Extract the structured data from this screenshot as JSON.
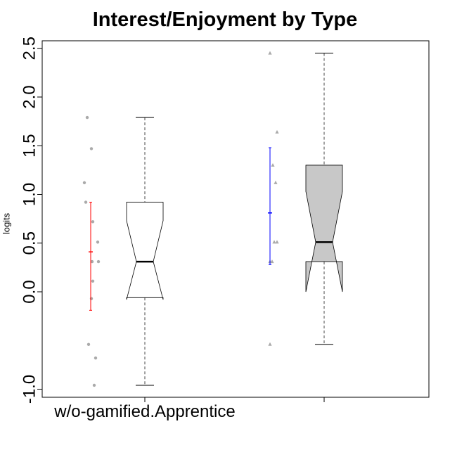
{
  "chart_data": {
    "type": "boxplot",
    "title": "Interest/Enjoyment by Type",
    "ylabel": "logits",
    "xlabel": "",
    "ylim": [
      -1.1,
      2.62
    ],
    "y_ticks": [
      {
        "value": 2.5,
        "label": "2.5"
      },
      {
        "value": 2.0,
        "label": "2.0"
      },
      {
        "value": 1.5,
        "label": "1.5"
      },
      {
        "value": 1.0,
        "label": "1.0"
      },
      {
        "value": 0.5,
        "label": "0.5"
      },
      {
        "value": 0.0,
        "label": "0.0"
      },
      {
        "value": -1.0,
        "label": "-1.0"
      }
    ],
    "groups": [
      {
        "label": "w/o-gamified.Apprentice",
        "box": {
          "whisker_low": -0.96,
          "q1": -0.06,
          "median": 0.31,
          "q3": 0.92,
          "whisker_high": 1.79,
          "notch_low": -0.08,
          "notch_high": 0.73
        },
        "box_fill": "#ffffff",
        "points": [
          {
            "x": -1.9,
            "y": 1.79
          },
          {
            "x": -1.6,
            "y": 1.47
          },
          {
            "x": -2.1,
            "y": 1.12
          },
          {
            "x": -2.0,
            "y": 0.92
          },
          {
            "x": -1.5,
            "y": 0.72
          },
          {
            "x": -1.55,
            "y": 0.31
          },
          {
            "x": -1.5,
            "y": 0.11
          },
          {
            "x": -1.6,
            "y": -0.07
          },
          {
            "x": -1.8,
            "y": -0.54
          },
          {
            "x": -1.3,
            "y": -0.68
          },
          {
            "x": -1.4,
            "y": -0.96
          },
          {
            "x": -1.15,
            "y": 0.51
          },
          {
            "x": -1.1,
            "y": 0.31
          }
        ],
        "point_shape": "circle",
        "mean": 0.41,
        "ci": [
          -0.19,
          0.92
        ],
        "ci_color": "#ff0000"
      },
      {
        "label": "",
        "box": {
          "whisker_low": -0.54,
          "q1": 0.31,
          "median": 0.51,
          "q3": 1.3,
          "whisker_high": 2.45,
          "notch_low": 0.0,
          "notch_high": 1.03
        },
        "box_fill": "#c8c8c8",
        "points": [
          {
            "x": -1.6,
            "y": 2.45
          },
          {
            "x": -1.1,
            "y": 1.64
          },
          {
            "x": -1.4,
            "y": 1.3
          },
          {
            "x": -1.2,
            "y": 1.12
          },
          {
            "x": -1.3,
            "y": 0.51
          },
          {
            "x": -1.1,
            "y": 0.51
          },
          {
            "x": -1.6,
            "y": 0.31
          },
          {
            "x": -1.45,
            "y": 0.31
          },
          {
            "x": -1.6,
            "y": -0.54
          }
        ],
        "point_shape": "triangle",
        "mean": 0.81,
        "ci": [
          0.28,
          1.48
        ],
        "ci_color": "#0000ff"
      }
    ],
    "grid": false,
    "legend": "none"
  }
}
